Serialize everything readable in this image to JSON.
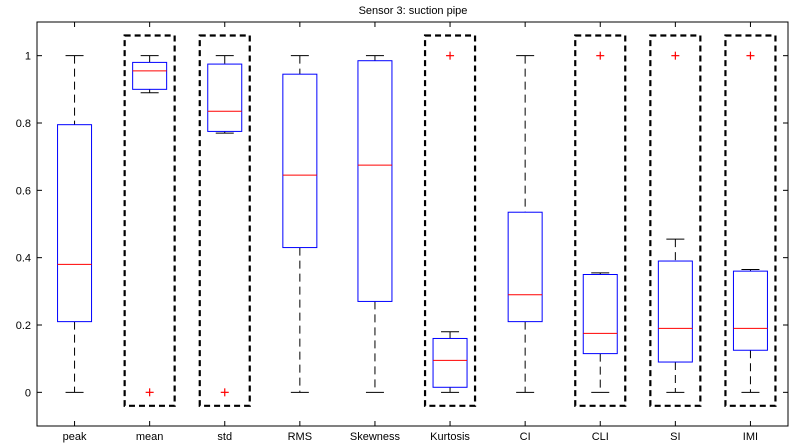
{
  "chart_data": {
    "type": "boxplot",
    "title": "Sensor 3: suction pipe",
    "xlabel": "",
    "ylabel": "",
    "ylim": [
      -0.1,
      1.1
    ],
    "yticks": [
      0,
      0.2,
      0.4,
      0.6,
      0.8,
      1
    ],
    "ytick_labels": [
      "0",
      "0.2",
      "0.4",
      "0.6",
      "0.8",
      "1"
    ],
    "grid": false,
    "colors": {
      "box": "#0000ff",
      "median": "#ff0000",
      "whisker": "#000000",
      "outlier": "#ff0000",
      "highlight": "#000000"
    },
    "boxes": [
      {
        "label": "peak",
        "whisker_low": 0,
        "q1": 0.21,
        "median": 0.38,
        "q3": 0.795,
        "whisker_high": 1,
        "outliers": [],
        "highlighted": false
      },
      {
        "label": "mean",
        "whisker_low": 0.89,
        "q1": 0.9,
        "median": 0.955,
        "q3": 0.98,
        "whisker_high": 1,
        "outliers": [
          0
        ],
        "highlighted": true
      },
      {
        "label": "std",
        "whisker_low": 0.77,
        "q1": 0.775,
        "median": 0.835,
        "q3": 0.975,
        "whisker_high": 1,
        "outliers": [
          0
        ],
        "highlighted": true
      },
      {
        "label": "RMS",
        "whisker_low": 0,
        "q1": 0.43,
        "median": 0.645,
        "q3": 0.945,
        "whisker_high": 1,
        "outliers": [],
        "highlighted": false
      },
      {
        "label": "Skewness",
        "whisker_low": 0,
        "q1": 0.27,
        "median": 0.675,
        "q3": 0.985,
        "whisker_high": 1,
        "outliers": [],
        "highlighted": false
      },
      {
        "label": "Kurtosis",
        "whisker_low": 0,
        "q1": 0.015,
        "median": 0.095,
        "q3": 0.16,
        "whisker_high": 0.18,
        "outliers": [
          1
        ],
        "highlighted": true
      },
      {
        "label": "CI",
        "whisker_low": 0,
        "q1": 0.21,
        "median": 0.29,
        "q3": 0.535,
        "whisker_high": 1,
        "outliers": [],
        "highlighted": false
      },
      {
        "label": "CLI",
        "whisker_low": 0,
        "q1": 0.115,
        "median": 0.175,
        "q3": 0.35,
        "whisker_high": 0.355,
        "outliers": [
          1
        ],
        "highlighted": true
      },
      {
        "label": "SI",
        "whisker_low": 0,
        "q1": 0.09,
        "median": 0.19,
        "q3": 0.39,
        "whisker_high": 0.455,
        "outliers": [
          1
        ],
        "highlighted": true
      },
      {
        "label": "IMI",
        "whisker_low": 0,
        "q1": 0.125,
        "median": 0.19,
        "q3": 0.36,
        "whisker_high": 0.365,
        "outliers": [
          1
        ],
        "highlighted": true
      }
    ]
  }
}
